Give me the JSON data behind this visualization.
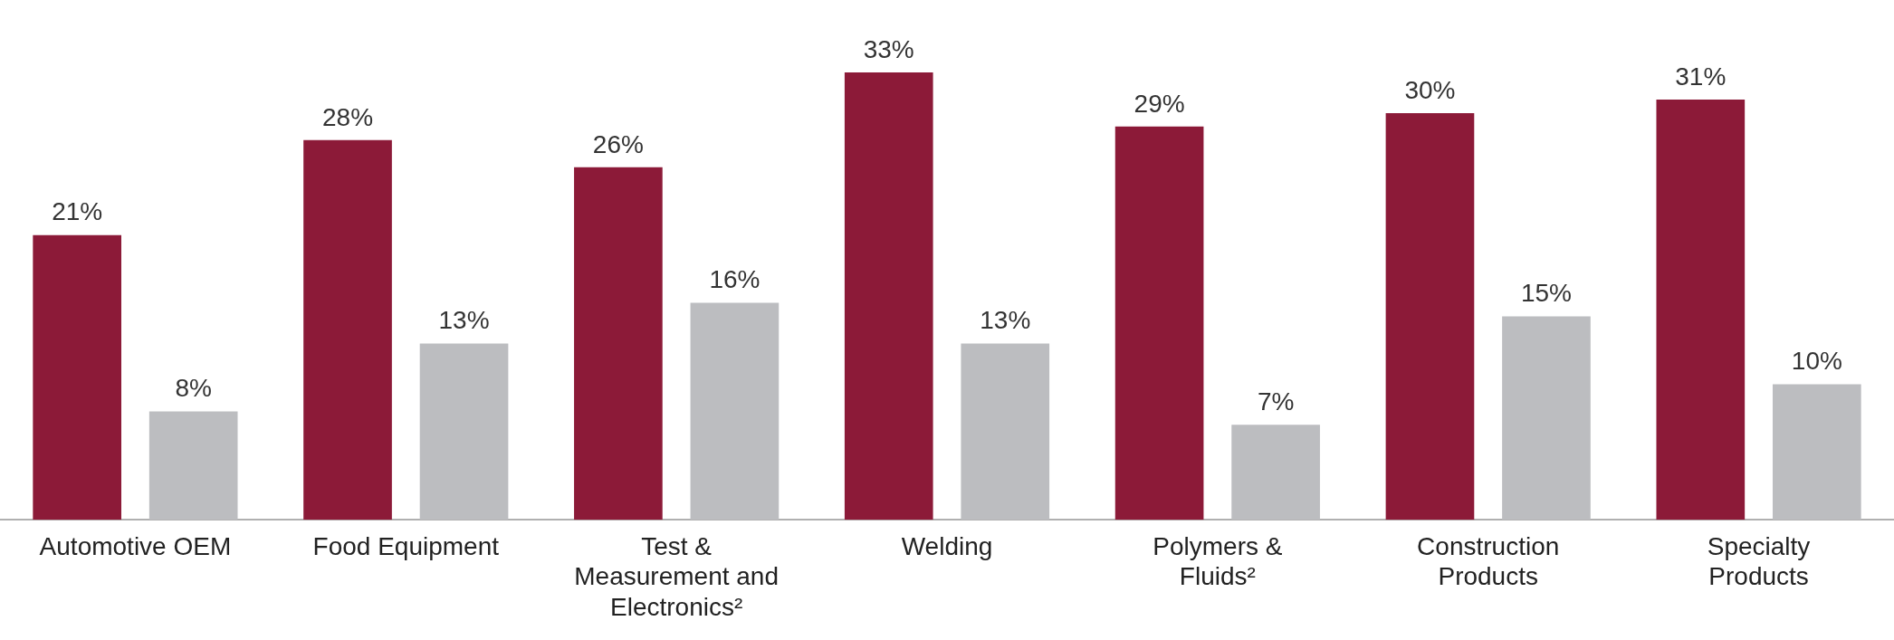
{
  "chart_data": {
    "type": "bar",
    "categories": [
      "Automotive OEM",
      "Food Equipment",
      "Test & Measurement and Electronics²",
      "Welding",
      "Polymers & Fluids²",
      "Construction Products",
      "Specialty Products"
    ],
    "series": [
      {
        "color": "#8c1a38",
        "values": [
          21,
          28,
          26,
          33,
          29,
          30,
          31
        ],
        "value_labels": [
          "21%",
          "28%",
          "26%",
          "33%",
          "29%",
          "30%",
          "31%"
        ]
      },
      {
        "color": "#bcbdc0",
        "values": [
          8,
          13,
          16,
          13,
          7,
          15,
          10
        ],
        "value_labels": [
          "8%",
          "13%",
          "16%",
          "13%",
          "7%",
          "15%",
          "10%"
        ]
      }
    ],
    "grid": false,
    "legend": false
  }
}
